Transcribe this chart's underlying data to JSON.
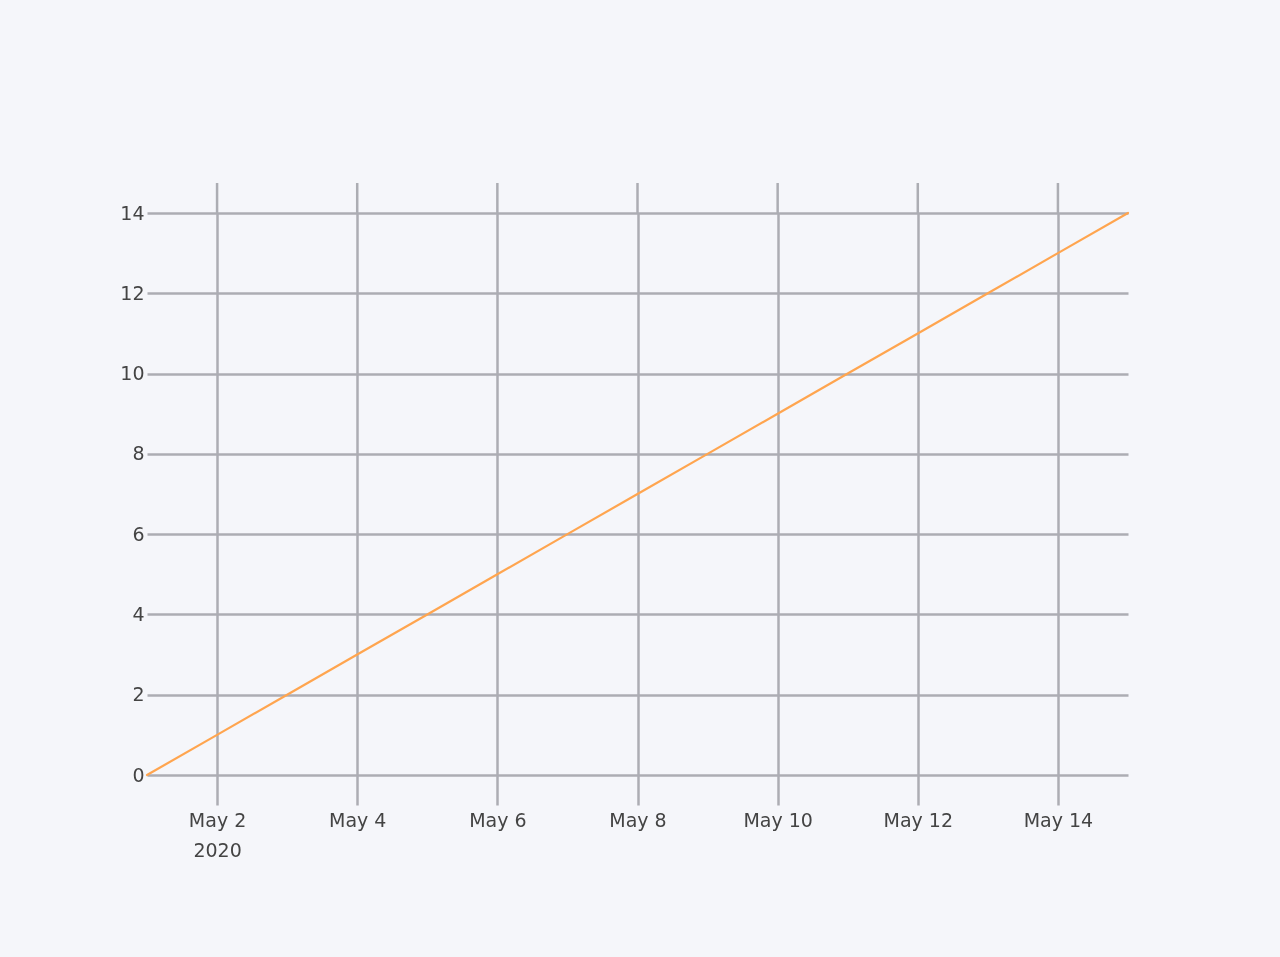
{
  "chart_data": {
    "type": "line",
    "x": [
      "2020-05-01",
      "2020-05-02",
      "2020-05-03",
      "2020-05-04",
      "2020-05-05",
      "2020-05-06",
      "2020-05-07",
      "2020-05-08",
      "2020-05-09",
      "2020-05-10",
      "2020-05-11",
      "2020-05-12",
      "2020-05-13",
      "2020-05-14",
      "2020-05-15"
    ],
    "series": [
      {
        "color": "#ffa54f",
        "values": [
          0,
          1,
          2,
          3,
          4,
          5,
          6,
          7,
          8,
          9,
          10,
          11,
          12,
          13,
          14
        ]
      }
    ],
    "xlim": [
      "2020-05-01",
      "2020-05-15"
    ],
    "xticks": [
      {
        "value": "2020-05-02",
        "label": "May 2\n2020"
      },
      {
        "value": "2020-05-04",
        "label": "May 4"
      },
      {
        "value": "2020-05-06",
        "label": "May 6"
      },
      {
        "value": "2020-05-08",
        "label": "May 8"
      },
      {
        "value": "2020-05-10",
        "label": "May 10"
      },
      {
        "value": "2020-05-12",
        "label": "May 12"
      },
      {
        "value": "2020-05-14",
        "label": "May 14"
      }
    ],
    "ylim": [
      0,
      14
    ],
    "yticks": [
      0,
      2,
      4,
      6,
      8,
      10,
      12,
      14
    ],
    "grid": true
  }
}
